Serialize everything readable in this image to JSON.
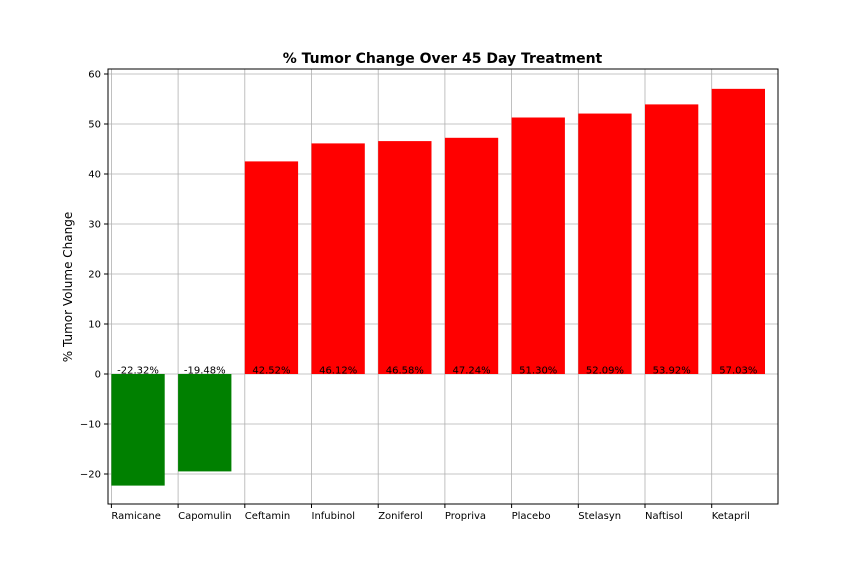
{
  "chart_data": {
    "type": "bar",
    "title": "% Tumor Change Over 45 Day Treatment",
    "xlabel": "",
    "ylabel": "% Tumor Volume Change",
    "categories": [
      "Ramicane",
      "Capomulin",
      "Ceftamin",
      "Infubinol",
      "Zoniferol",
      "Propriva",
      "Placebo",
      "Stelasyn",
      "Naftisol",
      "Ketapril"
    ],
    "values": [
      -22.32,
      -19.48,
      42.52,
      46.12,
      46.58,
      47.24,
      51.3,
      52.09,
      53.92,
      57.03
    ],
    "data_labels": [
      "-22.32%",
      "-19.48%",
      "42.52%",
      "46.12%",
      "46.58%",
      "47.24%",
      "51.30%",
      "52.09%",
      "53.92%",
      "57.03%"
    ],
    "ylim": [
      -26,
      61
    ],
    "yticks": [
      -20,
      -10,
      0,
      10,
      20,
      30,
      40,
      50,
      60
    ],
    "ytick_labels": [
      "−20",
      "−10",
      "0",
      "10",
      "20",
      "30",
      "40",
      "50",
      "60"
    ],
    "grid": true,
    "colors": {
      "negative": "#008000",
      "positive": "#ff0000",
      "grid": "#b0b0b0",
      "axis": "#000000"
    }
  }
}
